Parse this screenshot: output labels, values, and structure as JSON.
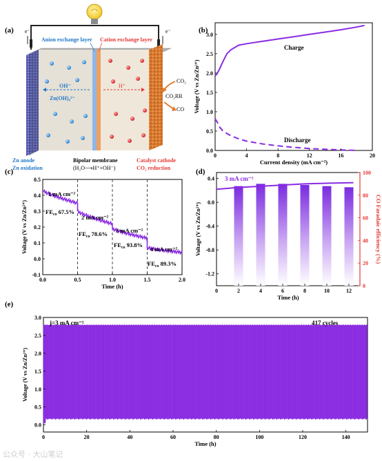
{
  "panels": {
    "a": {
      "label": "(a)",
      "electron_left": "e⁻",
      "electron_right": "e⁻",
      "anion_layer": "Anion exchange layer",
      "cation_layer": "Cation exchange layer",
      "oh_ion": "OH⁻",
      "zn_complex": "Zn(OH)₄²⁻",
      "h_ion": "H⁺",
      "co2": "CO₂",
      "co2rr": "CO₂RR",
      "co": "CO",
      "zn_anode": "Zn anode",
      "zn_oxidation": "Zn oxidation",
      "bipolar": "Bipolar membrane",
      "bipolar_eq": "(H₂O⟶H⁺+OH⁻)",
      "catalyst_cathode": "Catalyst cathode",
      "co2_reduction": "CO₂ reduction"
    },
    "b": {
      "label": "(b)",
      "charge_label": "Charge",
      "discharge_label": "Discharge"
    },
    "c": {
      "label": "(c)"
    },
    "d": {
      "label": "(d)",
      "current_label": "3 mA cm⁻²"
    },
    "e": {
      "label": "(e)",
      "current_label": "j=3 mA cm⁻²",
      "cycles_label": "417 cycles"
    }
  },
  "watermark": "公众号 · 大山笔记",
  "colors": {
    "purple": "#8a2be2",
    "red": "#e53935",
    "blue": "#1f78c8",
    "orange": "#e37a2c"
  },
  "chart_data": [
    {
      "panel": "b",
      "type": "line",
      "xlabel": "Current density (mA cm⁻²)",
      "ylabel": "Voltage (V vs Zn/Zn²⁺)",
      "xlim": [
        0,
        20
      ],
      "ylim": [
        0,
        3.3
      ],
      "xticks": [
        0,
        4,
        8,
        12,
        16,
        20
      ],
      "yticks": [
        0.0,
        0.5,
        1.0,
        1.5,
        2.0,
        2.5,
        3.0
      ],
      "series": [
        {
          "name": "Charge",
          "style": "solid",
          "x": [
            0,
            0.2,
            0.5,
            1,
            1.5,
            2,
            3,
            4,
            6,
            8,
            10,
            12,
            14,
            16,
            18,
            19
          ],
          "y": [
            1.93,
            1.97,
            2.08,
            2.3,
            2.5,
            2.6,
            2.72,
            2.76,
            2.82,
            2.88,
            2.94,
            3.0,
            3.06,
            3.12,
            3.19,
            3.23
          ]
        },
        {
          "name": "Discharge",
          "style": "dashed",
          "x": [
            0,
            0.3,
            0.6,
            1,
            2,
            3,
            4,
            6,
            8,
            10,
            12,
            14,
            16,
            18
          ],
          "y": [
            0.82,
            0.72,
            0.6,
            0.5,
            0.38,
            0.3,
            0.24,
            0.17,
            0.12,
            0.08,
            0.05,
            0.03,
            0.015,
            0.0
          ]
        }
      ]
    },
    {
      "panel": "c",
      "type": "line",
      "xlabel": "Time (h)",
      "ylabel": "Voltage (V vs Zn/Zn²⁺)",
      "xlim": [
        0,
        2.0
      ],
      "ylim": [
        -0.1,
        0.5
      ],
      "xticks": [
        0.0,
        0.5,
        1.0,
        1.5,
        2.0
      ],
      "yticks": [
        -0.1,
        0.0,
        0.1,
        0.2,
        0.3,
        0.4,
        0.5
      ],
      "segments": [
        {
          "x0": 0.0,
          "x1": 0.5,
          "y0": 0.43,
          "y1": 0.35
        },
        {
          "x0": 0.5,
          "x1": 1.0,
          "y0": 0.3,
          "y1": 0.22
        },
        {
          "x0": 1.0,
          "x1": 1.5,
          "y0": 0.19,
          "y1": 0.13
        },
        {
          "x0": 1.5,
          "x1": 2.0,
          "y0": 0.07,
          "y1": 0.04
        }
      ],
      "dividers": [
        0.5,
        1.0,
        1.5
      ],
      "annotations": [
        {
          "current": "1 mA cm⁻²",
          "fe_prefix": "FE",
          "fe_sub": "co",
          "fe": " 67.5%"
        },
        {
          "current": "2 mA cm⁻²",
          "fe_prefix": "FE",
          "fe_sub": "co",
          "fe": " 78.6%"
        },
        {
          "current": "3 mA cm⁻²",
          "fe_prefix": "FE",
          "fe_sub": "co",
          "fe": " 93.8%"
        },
        {
          "current": "4 mA cm⁻²",
          "fe_prefix": "FE",
          "fe_sub": "co",
          "fe": " 89.3%"
        }
      ]
    },
    {
      "panel": "d",
      "type": "bar",
      "xlabel": "Time (h)",
      "ylabel": "Voltage (V vs Zn/Zn²⁺)",
      "y2label": "CO Faradaic efficiency (%)",
      "xlim": [
        0,
        13
      ],
      "ylim": [
        -1.4,
        0.5
      ],
      "y2lim": [
        0,
        100
      ],
      "xticks": [
        0,
        2,
        4,
        6,
        8,
        10,
        12
      ],
      "yticks": [
        -1.2,
        -0.8,
        -0.4,
        0.0,
        0.4
      ],
      "y2ticks": [
        0,
        20,
        40,
        60,
        80,
        100
      ],
      "voltage": {
        "x": [
          0,
          2,
          4,
          6,
          8,
          10,
          12.4
        ],
        "y": [
          0.22,
          0.25,
          0.27,
          0.29,
          0.31,
          0.32,
          0.33
        ]
      },
      "bars": {
        "x": [
          2,
          4,
          6,
          8,
          10,
          12
        ],
        "values": [
          88,
          90,
          90,
          89,
          88,
          87
        ]
      }
    },
    {
      "panel": "e",
      "type": "line",
      "xlabel": "Time (h)",
      "ylabel": "Voltage (V vs Zn/Zn²⁺)",
      "xlim": [
        0,
        150
      ],
      "ylim": [
        -0.2,
        3.0
      ],
      "xticks": [
        0,
        20,
        40,
        60,
        80,
        100,
        120,
        140
      ],
      "yticks": [
        0.0,
        0.5,
        1.0,
        1.5,
        2.0,
        2.5,
        3.0
      ],
      "cycles": 417,
      "upper_level": 2.78,
      "lower_level": 0.15
    }
  ]
}
